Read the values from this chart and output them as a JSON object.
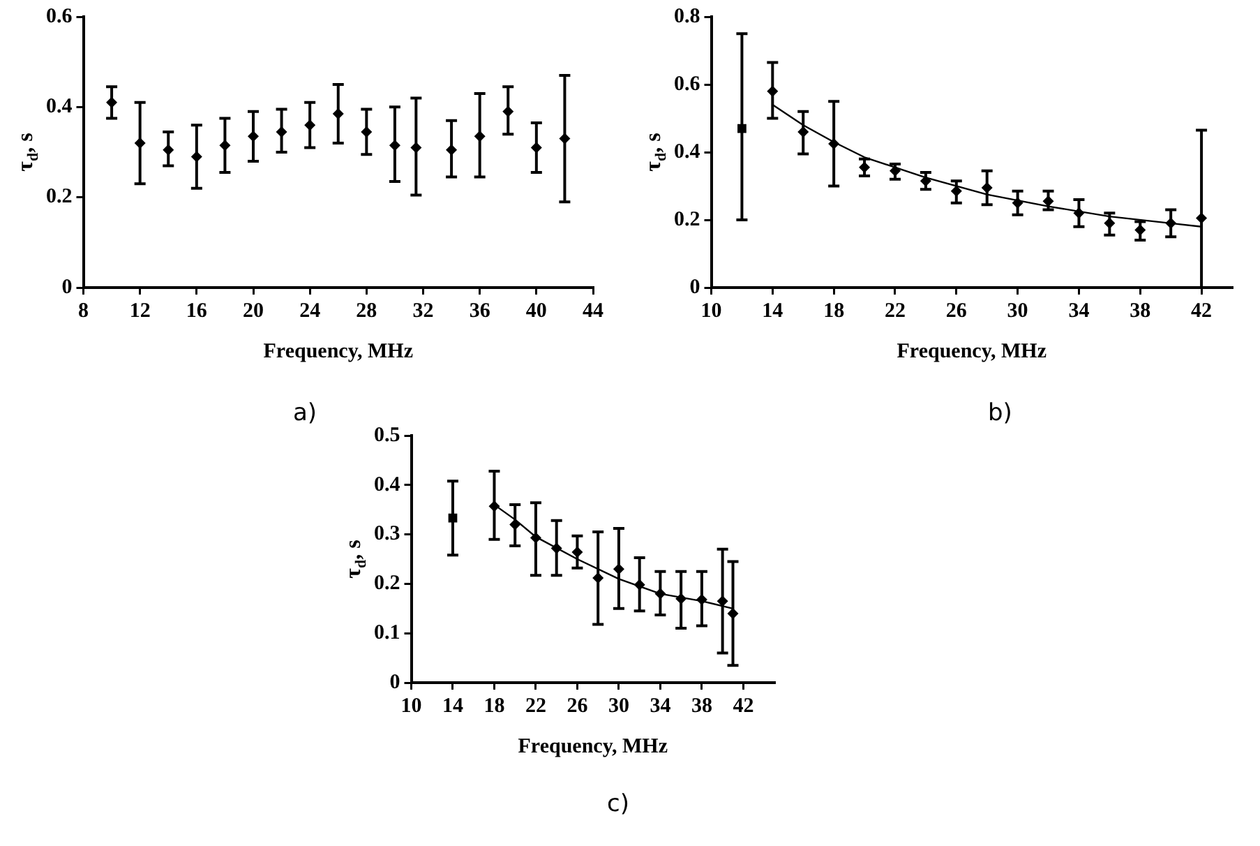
{
  "chart_data": [
    {
      "type": "scatter",
      "xlabel": "Frequency, MHz",
      "ylabel": "τ$_{d}$, s",
      "xlim": [
        8,
        44
      ],
      "xticks": [
        8,
        12,
        16,
        20,
        24,
        28,
        32,
        36,
        40,
        44
      ],
      "ylim": [
        0,
        0.6
      ],
      "yticks": [
        0,
        0.2,
        0.4,
        0.6
      ],
      "grid": false,
      "legend": false,
      "annotations": [
        "a)"
      ],
      "series": [
        {
          "type": "scatter",
          "marker": "diamond",
          "color": "#000000",
          "x": [
            10,
            12,
            14,
            16,
            18,
            20,
            22,
            24,
            26,
            28,
            30,
            31.5,
            34,
            36,
            38,
            40,
            42
          ],
          "values": [
            0.41,
            0.32,
            0.305,
            0.29,
            0.315,
            0.335,
            0.345,
            0.36,
            0.385,
            0.345,
            0.315,
            0.31,
            0.305,
            0.335,
            0.39,
            0.31,
            0.33
          ],
          "errors": [
            [
              0.375,
              0.445
            ],
            [
              0.23,
              0.41
            ],
            [
              0.27,
              0.345
            ],
            [
              0.22,
              0.36
            ],
            [
              0.255,
              0.375
            ],
            [
              0.28,
              0.39
            ],
            [
              0.3,
              0.395
            ],
            [
              0.31,
              0.41
            ],
            [
              0.32,
              0.45
            ],
            [
              0.295,
              0.395
            ],
            [
              0.235,
              0.4
            ],
            [
              0.205,
              0.42
            ],
            [
              0.245,
              0.37
            ],
            [
              0.245,
              0.43
            ],
            [
              0.34,
              0.445
            ],
            [
              0.255,
              0.365
            ],
            [
              0.19,
              0.47
            ]
          ]
        }
      ]
    },
    {
      "type": "scatter",
      "xlabel": "Frequency, MHz",
      "ylabel": "τ$_{d}$, s",
      "xlim": [
        10,
        44
      ],
      "xticks": [
        10,
        14,
        18,
        22,
        26,
        30,
        34,
        38,
        42
      ],
      "ylim": [
        0,
        0.8
      ],
      "yticks": [
        0,
        0.2,
        0.4,
        0.6,
        0.8
      ],
      "grid": false,
      "legend": false,
      "annotations": [
        "b)"
      ],
      "series": [
        {
          "type": "scatter",
          "marker": "square",
          "color": "#000000",
          "x": [
            12
          ],
          "values": [
            0.47
          ],
          "errors": [
            [
              0.2,
              0.75
            ]
          ]
        },
        {
          "type": "scatter",
          "marker": "diamond",
          "color": "#000000",
          "x": [
            14,
            16,
            18,
            20,
            22,
            24,
            26,
            28,
            30,
            32,
            34,
            36,
            38,
            40,
            42
          ],
          "values": [
            0.58,
            0.46,
            0.425,
            0.355,
            0.345,
            0.315,
            0.285,
            0.295,
            0.25,
            0.255,
            0.22,
            0.19,
            0.17,
            0.19,
            0.205
          ],
          "errors": [
            [
              0.5,
              0.665
            ],
            [
              0.395,
              0.52
            ],
            [
              0.3,
              0.55
            ],
            [
              0.33,
              0.38
            ],
            [
              0.32,
              0.365
            ],
            [
              0.29,
              0.34
            ],
            [
              0.25,
              0.315
            ],
            [
              0.245,
              0.345
            ],
            [
              0.215,
              0.285
            ],
            [
              0.23,
              0.285
            ],
            [
              0.18,
              0.26
            ],
            [
              0.155,
              0.22
            ],
            [
              0.14,
              0.195
            ],
            [
              0.15,
              0.23
            ],
            [
              0,
              0.465
            ]
          ]
        },
        {
          "type": "line",
          "marker": "none",
          "color": "#000000",
          "x": [
            14,
            16,
            18,
            20,
            24,
            28,
            32,
            36,
            40,
            42
          ],
          "values": [
            0.54,
            0.48,
            0.43,
            0.385,
            0.325,
            0.275,
            0.24,
            0.21,
            0.19,
            0.18
          ]
        }
      ]
    },
    {
      "type": "scatter",
      "xlabel": "Frequency, MHz",
      "ylabel": "τ$_{d}$, s",
      "xlim": [
        10,
        45
      ],
      "xticks": [
        10,
        14,
        18,
        22,
        26,
        30,
        34,
        38,
        42
      ],
      "ylim": [
        0,
        0.5
      ],
      "yticks": [
        0,
        0.1,
        0.2,
        0.3,
        0.4,
        0.5
      ],
      "grid": false,
      "legend": false,
      "annotations": [
        "c)"
      ],
      "series": [
        {
          "type": "scatter",
          "marker": "square",
          "color": "#000000",
          "x": [
            14
          ],
          "values": [
            0.333
          ],
          "errors": [
            [
              0.258,
              0.408
            ]
          ]
        },
        {
          "type": "scatter",
          "marker": "diamond",
          "color": "#000000",
          "x": [
            18,
            20,
            22,
            24,
            26,
            28,
            30,
            32,
            34,
            36,
            38,
            40,
            41
          ],
          "values": [
            0.357,
            0.32,
            0.293,
            0.272,
            0.264,
            0.212,
            0.23,
            0.198,
            0.18,
            0.17,
            0.168,
            0.165,
            0.14
          ],
          "errors": [
            [
              0.29,
              0.428
            ],
            [
              0.277,
              0.36
            ],
            [
              0.217,
              0.364
            ],
            [
              0.217,
              0.328
            ],
            [
              0.232,
              0.297
            ],
            [
              0.118,
              0.305
            ],
            [
              0.15,
              0.312
            ],
            [
              0.145,
              0.253
            ],
            [
              0.137,
              0.225
            ],
            [
              0.11,
              0.225
            ],
            [
              0.115,
              0.225
            ],
            [
              0.06,
              0.27
            ],
            [
              0.035,
              0.245
            ]
          ]
        },
        {
          "type": "line",
          "marker": "none",
          "color": "#000000",
          "x": [
            18,
            20,
            22,
            26,
            30,
            34,
            38,
            41
          ],
          "values": [
            0.36,
            0.33,
            0.295,
            0.25,
            0.21,
            0.18,
            0.165,
            0.15
          ]
        }
      ]
    }
  ]
}
